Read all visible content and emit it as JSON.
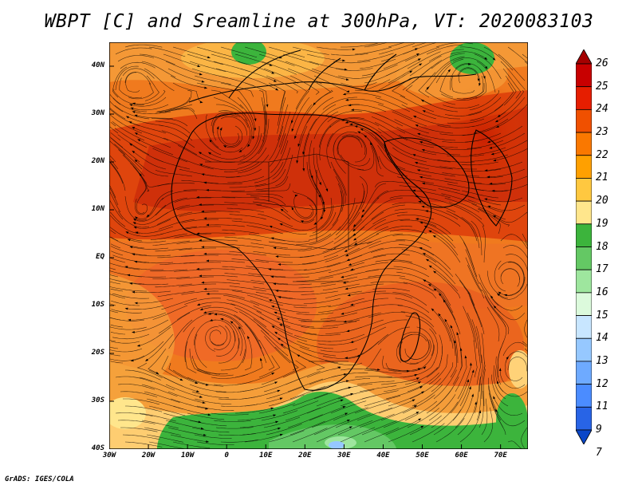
{
  "title": "WBPT [C] and Sreamline at 300hPa, VT: 2020083103",
  "footer": "GrADS: IGES/COLA",
  "map": {
    "lat_labels": [
      "40N",
      "30N",
      "20N",
      "10N",
      "EQ",
      "10S",
      "20S",
      "30S",
      "40S"
    ],
    "lat_values": [
      40,
      30,
      20,
      10,
      0,
      -10,
      -20,
      -30,
      -40
    ],
    "lon_labels": [
      "30W",
      "20W",
      "10W",
      "0",
      "10E",
      "20E",
      "30E",
      "40E",
      "50E",
      "60E",
      "70E"
    ],
    "lon_values": [
      -30,
      -20,
      -10,
      0,
      10,
      20,
      30,
      40,
      50,
      60,
      70
    ],
    "lat_range": [
      -40,
      45
    ],
    "lon_range": [
      -30,
      77
    ]
  },
  "colorbar": {
    "labels": [
      "26",
      "25",
      "24",
      "23",
      "22",
      "21",
      "20",
      "19",
      "18",
      "17",
      "16",
      "15",
      "14",
      "13",
      "12",
      "11",
      "9",
      "7"
    ],
    "colors": [
      "#a50000",
      "#c80000",
      "#e61e00",
      "#f05000",
      "#fa7800",
      "#ffa000",
      "#ffc840",
      "#ffe68c",
      "#3cb43c",
      "#64c864",
      "#9ee69e",
      "#dcfadc",
      "#c8e6ff",
      "#96c8ff",
      "#6eaaff",
      "#4b8cff",
      "#2864e6",
      "#0a46c8"
    ]
  }
}
